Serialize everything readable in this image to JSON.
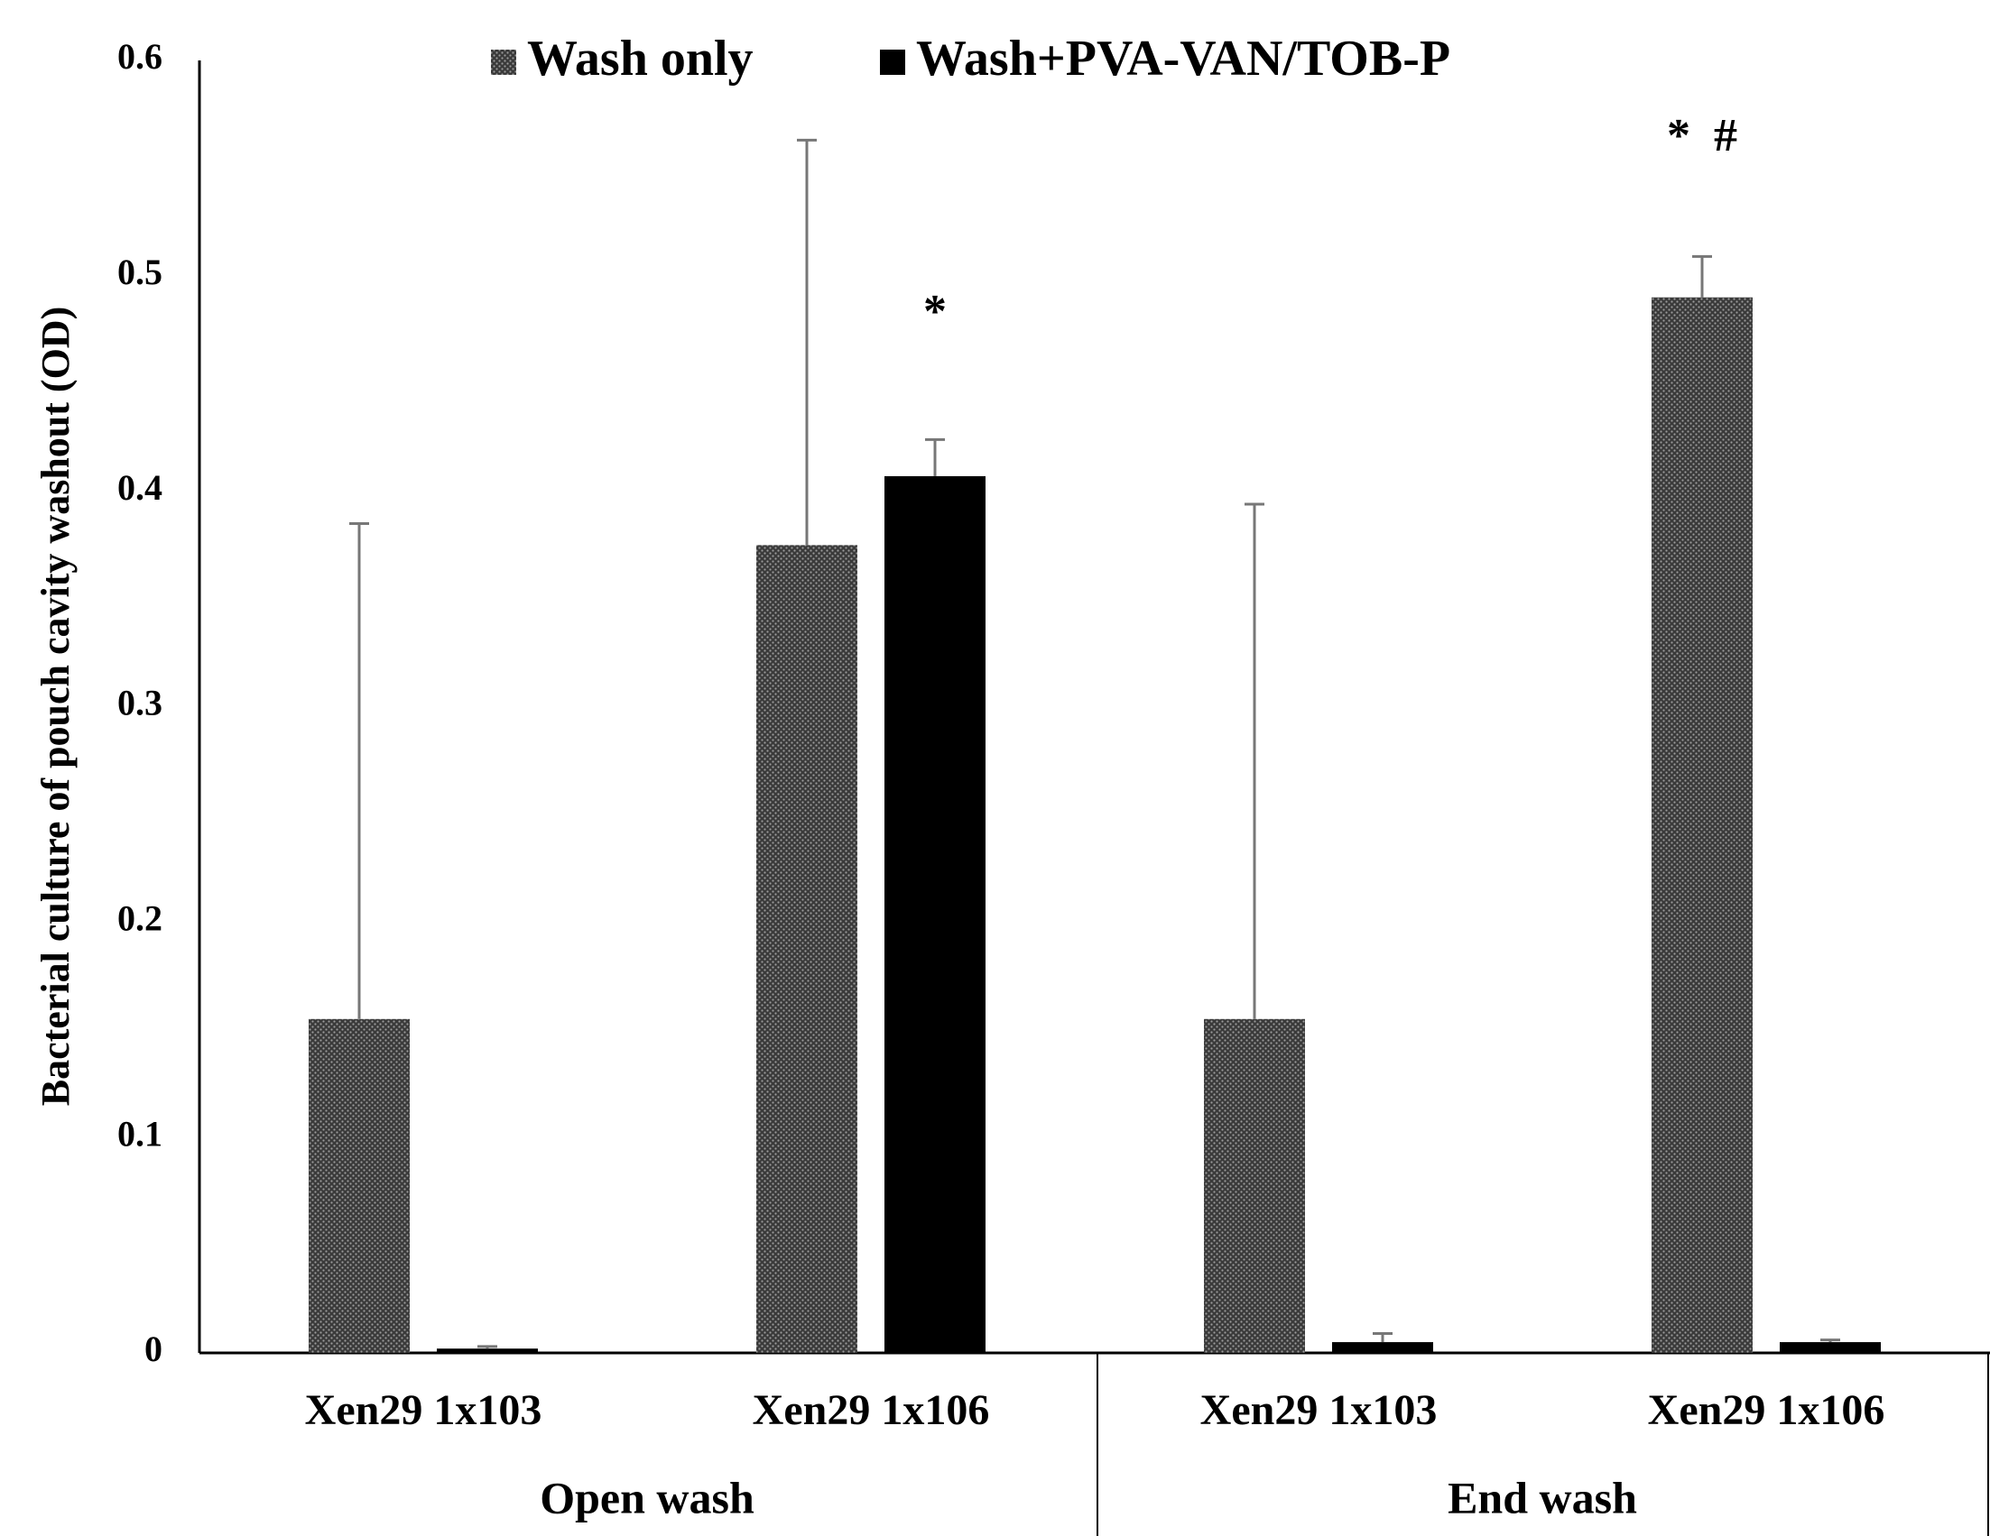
{
  "chart_data": {
    "type": "bar",
    "y_label": "Bacterial culture of pouch cavity washout (OD)",
    "categories": [
      "Xen29 1x103",
      "Xen29 1x106",
      "Xen29 1x103",
      "Xen29 1x106"
    ],
    "groups": [
      "Open wash",
      "End wash"
    ],
    "series": [
      {
        "name": "Wash only",
        "color": "#3a3a3a",
        "pattern": "dots",
        "values": [
          0.155,
          0.375,
          0.155,
          0.49
        ],
        "errors": [
          0.23,
          0.188,
          0.239,
          0.019
        ]
      },
      {
        "name": "Wash+PVA-VAN/TOB-P",
        "color": "#000000",
        "values": [
          0.002,
          0.407,
          0.005,
          0.005
        ],
        "errors": [
          0.001,
          0.017,
          0.004,
          0.001
        ]
      }
    ],
    "annotations": [
      "*",
      "*  #"
    ],
    "ylim": [
      0,
      0.6
    ],
    "yticks": [
      0,
      0.1,
      0.2,
      0.3,
      0.4,
      0.5,
      0.6
    ],
    "grid": false
  }
}
